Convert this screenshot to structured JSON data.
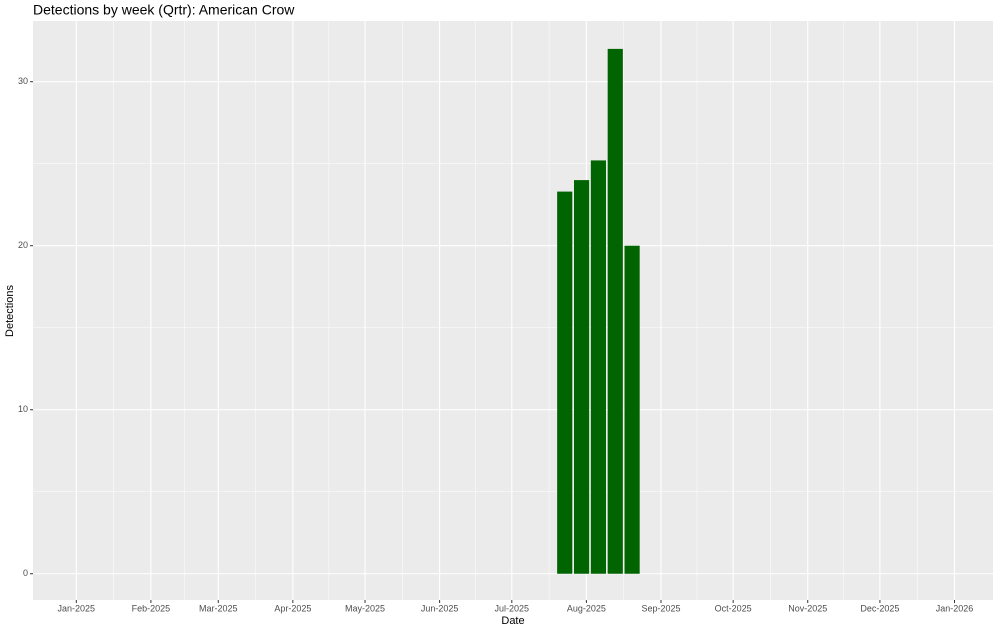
{
  "chart_data": {
    "type": "bar",
    "title": "Detections by week (Qrtr): American Crow",
    "x_label": "Date",
    "y_label": "Detections",
    "x": [
      "2025-07-23",
      "2025-07-30",
      "2025-08-06",
      "2025-08-13",
      "2025-08-20"
    ],
    "values": [
      23.3,
      24,
      25.2,
      32,
      20
    ],
    "color": "#006400",
    "xlim": [
      "2024-12-14",
      "2026-01-17"
    ],
    "xticks": [
      {
        "value": "2025-01-01",
        "label": "Jan-2025"
      },
      {
        "value": "2025-02-01",
        "label": "Feb-2025"
      },
      {
        "value": "2025-03-01",
        "label": "Mar-2025"
      },
      {
        "value": "2025-04-01",
        "label": "Apr-2025"
      },
      {
        "value": "2025-05-01",
        "label": "May-2025"
      },
      {
        "value": "2025-06-01",
        "label": "Jun-2025"
      },
      {
        "value": "2025-07-01",
        "label": "Jul-2025"
      },
      {
        "value": "2025-08-01",
        "label": "Aug-2025"
      },
      {
        "value": "2025-09-01",
        "label": "Sep-2025"
      },
      {
        "value": "2025-10-01",
        "label": "Oct-2025"
      },
      {
        "value": "2025-11-01",
        "label": "Nov-2025"
      },
      {
        "value": "2025-12-01",
        "label": "Dec-2025"
      },
      {
        "value": "2026-01-01",
        "label": "Jan-2026"
      }
    ],
    "ylim": [
      -1.6,
      33.7
    ],
    "yticks": [
      0,
      10,
      20,
      30
    ],
    "bar_days": 7,
    "grid": true
  }
}
